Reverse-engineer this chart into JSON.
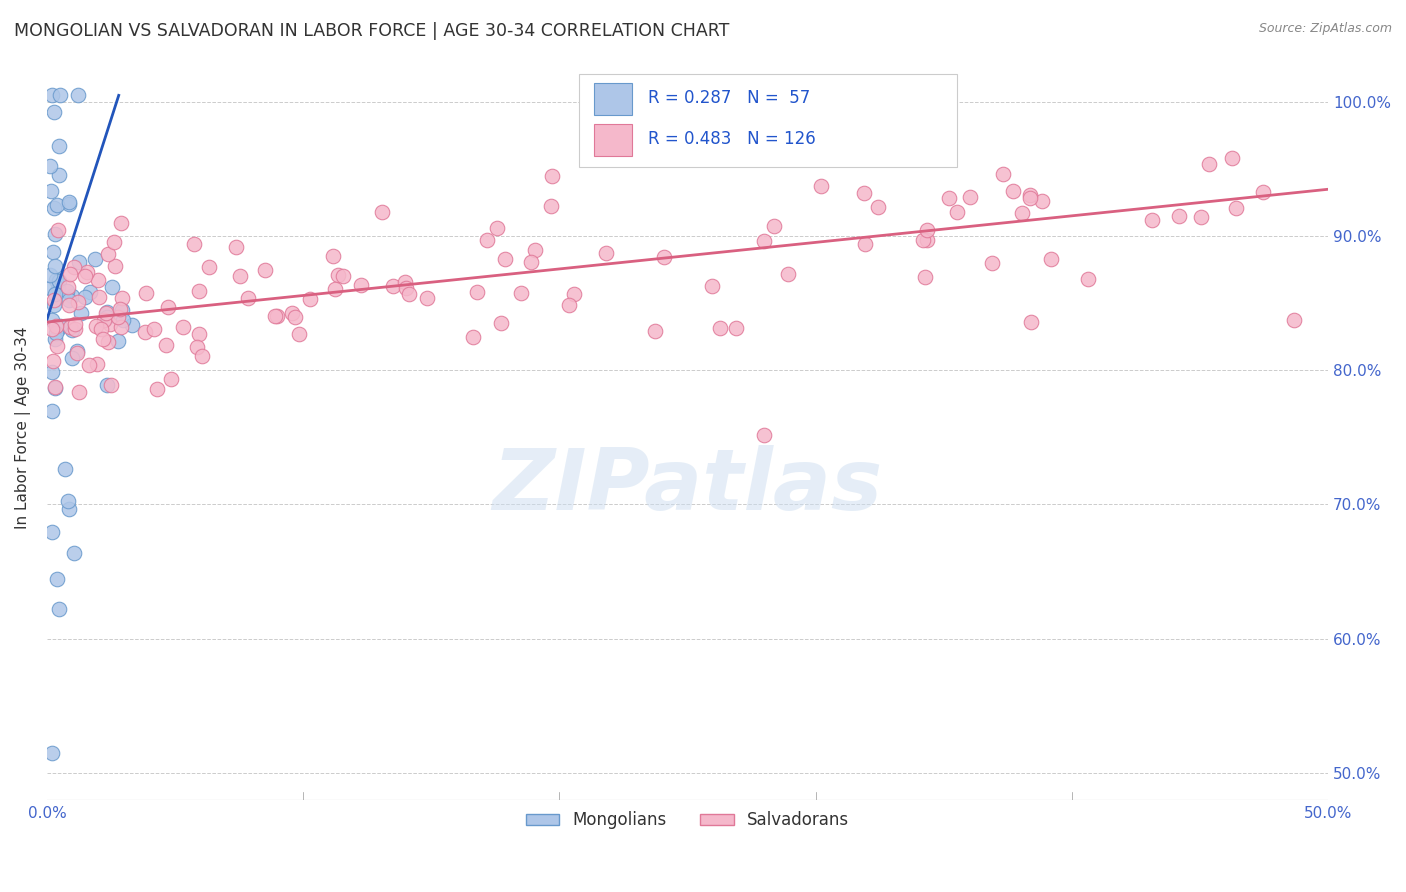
{
  "title": "MONGOLIAN VS SALVADORAN IN LABOR FORCE | AGE 30-34 CORRELATION CHART",
  "source": "Source: ZipAtlas.com",
  "ylabel": "In Labor Force | Age 30-34",
  "xlim": [
    0.0,
    0.5
  ],
  "ylim": [
    0.48,
    1.035
  ],
  "xtick_positions": [
    0.0,
    0.1,
    0.2,
    0.3,
    0.4,
    0.5
  ],
  "xtick_labels": [
    "0.0%",
    "",
    "",
    "",
    "",
    "50.0%"
  ],
  "ytick_positions": [
    0.5,
    0.6,
    0.7,
    0.8,
    0.9,
    1.0
  ],
  "ytick_labels": [
    "50.0%",
    "60.0%",
    "70.0%",
    "80.0%",
    "90.0%",
    "100.0%"
  ],
  "mongolian_color": "#aec6e8",
  "mongolian_edge": "#6899cc",
  "salvadoran_color": "#f5b8cb",
  "salvadoran_edge": "#e07898",
  "blue_line_color": "#2255bb",
  "pink_line_color": "#d96080",
  "watermark": "ZIPatlas",
  "blue_line_x0": 0.0,
  "blue_line_y0": 0.838,
  "blue_line_x1": 0.028,
  "blue_line_y1": 1.005,
  "pink_line_x0": 0.0,
  "pink_line_y0": 0.836,
  "pink_line_x1": 0.5,
  "pink_line_y1": 0.935
}
